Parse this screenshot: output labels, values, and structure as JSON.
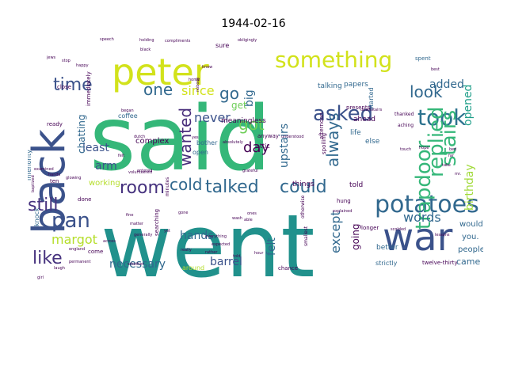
{
  "title": "1944-02-16",
  "words": [
    {
      "t": "said",
      "c": "#35b779"
    },
    {
      "t": "went",
      "c": "#21918c"
    },
    {
      "t": "back",
      "c": "#3b528b"
    },
    {
      "t": "war",
      "c": "#3b528b"
    },
    {
      "t": "peter",
      "c": "#d2e21b"
    },
    {
      "t": "potatoes",
      "c": "#31688e"
    },
    {
      "t": "something",
      "c": "#d2e21b"
    },
    {
      "t": "took",
      "c": "#2c728e"
    },
    {
      "t": "trapdoor",
      "c": "#35b779"
    },
    {
      "t": "replied",
      "c": "#35b779"
    },
    {
      "t": "stairs",
      "c": "#35b779"
    },
    {
      "t": "talked",
      "c": "#31688e"
    },
    {
      "t": "could",
      "c": "#31688e"
    },
    {
      "t": "asked",
      "c": "#3b528b"
    },
    {
      "t": "always",
      "c": "#31688e"
    },
    {
      "t": "pan",
      "c": "#3b528b"
    },
    {
      "t": "still",
      "c": "#46327e"
    },
    {
      "t": "like",
      "c": "#46327e"
    },
    {
      "t": "room",
      "c": "#46327e"
    },
    {
      "t": "cold",
      "c": "#31688e"
    },
    {
      "t": "wanted",
      "c": "#472c7a"
    },
    {
      "t": "got",
      "c": "#6ece58"
    },
    {
      "t": "look",
      "c": "#31688e"
    },
    {
      "t": "time",
      "c": "#3b528b"
    },
    {
      "t": "one",
      "c": "#31688e"
    },
    {
      "t": "go",
      "c": "#31688e"
    },
    {
      "t": "words",
      "c": "#31688e"
    },
    {
      "t": "day",
      "c": "#440154"
    },
    {
      "t": "except",
      "c": "#31688e"
    },
    {
      "t": "margot",
      "c": "#b5de2b"
    },
    {
      "t": "upstairs",
      "c": "#31688e"
    },
    {
      "t": "since",
      "c": "#d2e21b"
    },
    {
      "t": "never",
      "c": "#3b528b"
    },
    {
      "t": "hands",
      "c": "#31688e"
    },
    {
      "t": "birthday",
      "c": "#a0da39"
    },
    {
      "t": "opened",
      "c": "#1f9e89"
    },
    {
      "t": "added",
      "c": "#31688e"
    },
    {
      "t": "big",
      "c": "#31688e"
    },
    {
      "t": "felt",
      "c": "#31688e"
    },
    {
      "t": "necessary",
      "c": "#31688e"
    },
    {
      "t": "barrel",
      "c": "#3b528b"
    },
    {
      "t": "came",
      "c": "#31688e"
    },
    {
      "t": "least",
      "c": "#3b528b"
    },
    {
      "t": "chatting",
      "c": "#31688e"
    },
    {
      "t": "arm",
      "c": "#3b528b"
    },
    {
      "t": "get",
      "c": "#6ece58"
    },
    {
      "t": "going",
      "c": "#440154"
    },
    {
      "t": "people",
      "c": "#31688e"
    },
    {
      "t": "would",
      "c": "#31688e"
    },
    {
      "t": "you.",
      "c": "#31688e"
    },
    {
      "t": "better",
      "c": "#31688e"
    },
    {
      "t": "things",
      "c": "#440154"
    },
    {
      "t": "told",
      "c": "#440154"
    },
    {
      "t": "complex",
      "c": "#440154"
    },
    {
      "t": "working",
      "c": "#b5de2b"
    },
    {
      "t": "life",
      "c": "#31688e"
    },
    {
      "t": "else",
      "c": "#31688e"
    },
    {
      "t": "ahead",
      "c": "#440154"
    },
    {
      "t": "open",
      "c": "#31688e"
    },
    {
      "t": "bother",
      "c": "#31688e"
    },
    {
      "t": "inferiority",
      "c": "#31688e"
    },
    {
      "t": "knock",
      "c": "#31688e"
    },
    {
      "t": "coffee",
      "c": "#31688e"
    },
    {
      "t": "meaningless",
      "c": "#440154"
    },
    {
      "t": "talking",
      "c": "#31688e"
    },
    {
      "t": "papers",
      "c": "#31688e"
    },
    {
      "t": "started",
      "c": "#31688e"
    },
    {
      "t": "spent",
      "c": "#31688e"
    },
    {
      "t": "sure",
      "c": "#440154"
    },
    {
      "t": "afternoon",
      "c": "#440154"
    },
    {
      "t": "attic",
      "c": "#440154"
    },
    {
      "t": "anyway",
      "c": "#440154"
    },
    {
      "t": "spoiling",
      "c": "#440154"
    },
    {
      "t": "presents",
      "c": "#440154"
    },
    {
      "t": "thanked",
      "c": "#440154"
    },
    {
      "t": "aching",
      "c": "#440154"
    },
    {
      "t": "immediately",
      "c": "#440154"
    },
    {
      "t": "searching",
      "c": "#440154"
    },
    {
      "t": "around",
      "c": "#b5de2b"
    },
    {
      "t": "chance",
      "c": "#440154"
    },
    {
      "t": "strictly",
      "c": "#31688e"
    },
    {
      "t": "twelve-thirty",
      "c": "#440154"
    },
    {
      "t": "smallest",
      "c": "#440154"
    },
    {
      "t": "longer",
      "c": "#440154"
    },
    {
      "t": "otherwise",
      "c": "#440154"
    },
    {
      "t": "hung",
      "c": "#440154"
    },
    {
      "t": "done",
      "c": "#440154"
    },
    {
      "t": "come",
      "c": "#440154"
    },
    {
      "t": "ready",
      "c": "#440154"
    },
    {
      "t": "close",
      "c": "#440154"
    },
    {
      "t": "minutes",
      "c": "#440154"
    },
    {
      "t": "ten",
      "c": "#440154"
    },
    {
      "t": "speech",
      "c": "#440154"
    },
    {
      "t": "holding",
      "c": "#440154"
    },
    {
      "t": "compliments",
      "c": "#440154"
    },
    {
      "t": "obligingly",
      "c": "#440154"
    },
    {
      "t": "black",
      "c": "#440154"
    },
    {
      "t": "happy",
      "c": "#440154"
    },
    {
      "t": "volunteered",
      "c": "#440154"
    },
    {
      "t": "glowing",
      "c": "#440154"
    },
    {
      "t": "explained",
      "c": "#440154"
    },
    {
      "t": "grateful",
      "c": "#440154"
    },
    {
      "t": "expected",
      "c": "#440154"
    },
    {
      "t": "everything",
      "c": "#440154"
    },
    {
      "t": "examined",
      "c": "#440154"
    },
    {
      "t": "baptized",
      "c": "#440154"
    },
    {
      "t": "scolded",
      "c": "#440154"
    },
    {
      "t": "entered",
      "c": "#440154"
    },
    {
      "t": "downstairs",
      "c": "#440154"
    },
    {
      "t": "lessons",
      "c": "#440154"
    },
    {
      "t": "england",
      "c": "#440154"
    },
    {
      "t": "generally",
      "c": "#440154"
    },
    {
      "t": "permanent",
      "c": "#440154"
    },
    {
      "t": "absolutely",
      "c": "#440154"
    },
    {
      "t": "hands",
      "c": "#440154"
    },
    {
      "t": "dutch",
      "c": "#440154"
    },
    {
      "t": "stop",
      "c": "#440154"
    },
    {
      "t": "jews",
      "c": "#440154"
    },
    {
      "t": "began",
      "c": "#440154"
    },
    {
      "t": "know",
      "c": "#440154"
    },
    {
      "t": "home",
      "c": "#440154"
    },
    {
      "t": "nobody",
      "c": "#440154"
    },
    {
      "t": "felt",
      "c": "#440154"
    },
    {
      "t": "best",
      "c": "#440154"
    },
    {
      "t": "yes",
      "c": "#440154"
    },
    {
      "t": "gone",
      "c": "#440154"
    },
    {
      "t": "fine",
      "c": "#440154"
    },
    {
      "t": "really",
      "c": "#440154"
    },
    {
      "t": "rather",
      "c": "#440154"
    },
    {
      "t": "wash",
      "c": "#440154"
    },
    {
      "t": "able",
      "c": "#440154"
    },
    {
      "t": "told",
      "c": "#440154"
    },
    {
      "t": "hour",
      "c": "#440154"
    },
    {
      "t": "take",
      "c": "#440154"
    },
    {
      "t": "far",
      "c": "#440154"
    },
    {
      "t": "bed",
      "c": "#440154"
    },
    {
      "t": "mr.",
      "c": "#440154"
    },
    {
      "t": "hope",
      "c": "#440154"
    },
    {
      "t": "yet",
      "c": "#440154"
    },
    {
      "t": "girl",
      "c": "#440154"
    },
    {
      "t": "laugh",
      "c": "#440154"
    },
    {
      "t": "touch",
      "c": "#440154"
    },
    {
      "t": "ones",
      "c": "#440154"
    },
    {
      "t": "across",
      "c": "#440154"
    },
    {
      "t": "whether",
      "c": "#440154"
    },
    {
      "t": "matter",
      "c": "#440154"
    },
    {
      "t": "understood",
      "c": "#440154"
    }
  ]
}
